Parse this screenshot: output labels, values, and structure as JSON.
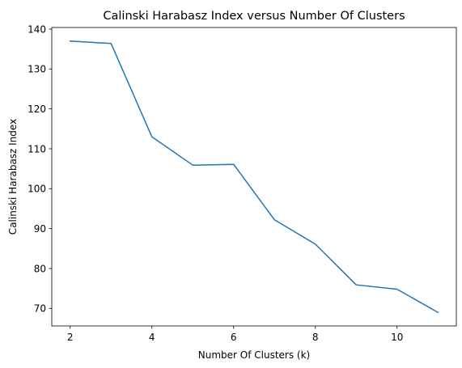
{
  "chart_data": {
    "type": "line",
    "title": "Calinski Harabasz Index versus Number Of Clusters",
    "xlabel": "Number Of Clusters (k)",
    "ylabel": "Calinski Harabasz Index",
    "xlim": [
      1.55,
      11.45
    ],
    "ylim": [
      65.6,
      140.4
    ],
    "xticks": [
      2,
      4,
      6,
      8,
      10
    ],
    "yticks": [
      70,
      80,
      90,
      100,
      110,
      120,
      130,
      140
    ],
    "grid": false,
    "legend": "none",
    "series": [
      {
        "color": "#1f77b4",
        "x": [
          2,
          3,
          4,
          5,
          6,
          7,
          8,
          9,
          10,
          11
        ],
        "y": [
          137.0,
          136.4,
          113.0,
          105.9,
          106.1,
          92.2,
          86.1,
          75.9,
          74.8,
          69.0
        ]
      }
    ]
  }
}
